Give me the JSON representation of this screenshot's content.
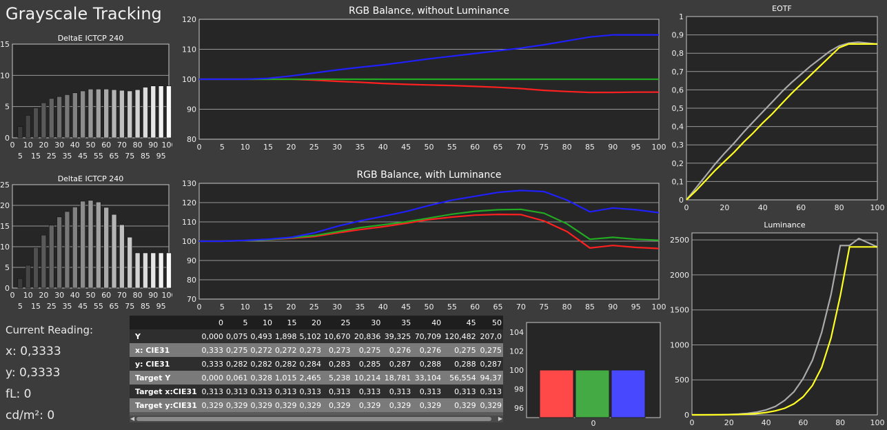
{
  "app": {
    "title": "Grayscale Tracking"
  },
  "current_reading": {
    "label": "Current Reading:",
    "x": "x: 0,3333",
    "y": "y: 0,3333",
    "fl": "fL: 0",
    "cdm2": "cd/m²: 0"
  },
  "colors": {
    "red": "#ff2020",
    "green": "#22aa22",
    "blue": "#2020ff",
    "yellow": "#ffff22",
    "gray": "#aaaaaa",
    "background": "#3c3c3c",
    "plot": "#262626"
  },
  "table": {
    "columns": [
      "",
      "0",
      "5",
      "10",
      "15",
      "20",
      "25",
      "30",
      "35",
      "40",
      "45",
      "50"
    ],
    "rows": [
      {
        "label": "Y",
        "values": [
          "0,000",
          "0,075",
          "0,493",
          "1,898",
          "5,102",
          "10,670",
          "20,836",
          "39,325",
          "70,709",
          "120,482",
          "207,0"
        ]
      },
      {
        "label": "x: CIE31",
        "values": [
          "0,333",
          "0,275",
          "0,272",
          "0,272",
          "0,273",
          "0,273",
          "0,275",
          "0,276",
          "0,276",
          "0,275",
          "0,275"
        ]
      },
      {
        "label": "y: CIE31",
        "values": [
          "0,333",
          "0,282",
          "0,282",
          "0,282",
          "0,284",
          "0,283",
          "0,285",
          "0,287",
          "0,288",
          "0,288",
          "0,287"
        ]
      },
      {
        "label": "Target Y",
        "values": [
          "0,000",
          "0,061",
          "0,328",
          "1,015",
          "2,465",
          "5,238",
          "10,214",
          "18,781",
          "33,104",
          "56,554",
          "94,37"
        ]
      },
      {
        "label": "Target x:CIE31",
        "values": [
          "0,313",
          "0,313",
          "0,313",
          "0,313",
          "0,313",
          "0,313",
          "0,313",
          "0,313",
          "0,313",
          "0,313",
          "0,313"
        ]
      },
      {
        "label": "Target y:CIE31",
        "values": [
          "0,329",
          "0,329",
          "0,329",
          "0,329",
          "0,329",
          "0,329",
          "0,329",
          "0,329",
          "0,329",
          "0,329",
          "0,329"
        ]
      }
    ]
  },
  "chart_data": [
    {
      "id": "deltae1",
      "type": "bar",
      "title": "DeltaE ICTCP 240",
      "ylim": [
        0,
        15
      ],
      "yticks": [
        0,
        5,
        10,
        15
      ],
      "x": [
        5,
        10,
        15,
        20,
        25,
        30,
        35,
        40,
        45,
        50,
        55,
        60,
        65,
        70,
        75,
        80,
        85,
        90,
        95,
        100
      ],
      "values": [
        1.8,
        3.6,
        4.8,
        5.6,
        6.3,
        6.6,
        6.9,
        7.2,
        7.5,
        7.8,
        7.8,
        7.8,
        7.7,
        7.6,
        7.5,
        7.7,
        8.1,
        8.3,
        8.3,
        8.3
      ],
      "xticks_top": [
        0,
        10,
        20,
        30,
        40,
        50,
        60,
        70,
        80,
        90,
        100
      ],
      "xticks_bottom": [
        5,
        15,
        25,
        35,
        45,
        55,
        65,
        75,
        85,
        95
      ]
    },
    {
      "id": "deltae2",
      "type": "bar",
      "title": "DeltaE ICTCP 240",
      "ylim": [
        0,
        25
      ],
      "yticks": [
        0,
        5,
        10,
        15,
        20,
        25
      ],
      "x": [
        5,
        10,
        15,
        20,
        25,
        30,
        35,
        40,
        45,
        50,
        55,
        60,
        65,
        70,
        75,
        80,
        85,
        90,
        95,
        100
      ],
      "values": [
        2.3,
        5.5,
        9.8,
        12.8,
        15.2,
        17.2,
        18.5,
        19.6,
        21.0,
        21.2,
        20.8,
        19.5,
        17.8,
        15.3,
        12.3,
        8.5,
        8.5,
        8.5,
        8.5,
        8.5
      ],
      "xticks_top": [
        0,
        10,
        20,
        30,
        40,
        50,
        60,
        70,
        80,
        90,
        100
      ],
      "xticks_bottom": [
        5,
        15,
        25,
        35,
        45,
        55,
        65,
        75,
        85,
        95
      ]
    },
    {
      "id": "rgb1",
      "type": "line",
      "title": "RGB Balance, without Luminance",
      "xlim": [
        0,
        100
      ],
      "ylim": [
        80,
        120
      ],
      "yticks": [
        80,
        90,
        100,
        110,
        120
      ],
      "xticks": [
        0,
        5,
        10,
        15,
        20,
        25,
        30,
        35,
        40,
        45,
        50,
        55,
        60,
        65,
        70,
        75,
        80,
        85,
        90,
        95,
        100
      ],
      "x": [
        0,
        5,
        10,
        15,
        20,
        25,
        30,
        35,
        40,
        45,
        50,
        55,
        60,
        65,
        70,
        75,
        80,
        85,
        90,
        95,
        100
      ],
      "series": [
        {
          "color": "red",
          "values": [
            100,
            100,
            100,
            100,
            100,
            99.7,
            99.3,
            99.0,
            98.6,
            98.3,
            98.1,
            97.9,
            97.6,
            97.3,
            96.9,
            96.3,
            95.9,
            95.6,
            95.6,
            95.7,
            95.7
          ]
        },
        {
          "color": "green",
          "values": [
            100,
            100,
            100,
            100,
            100,
            100,
            100,
            100,
            100,
            100,
            100,
            100,
            100,
            100,
            100,
            100,
            100,
            100,
            100,
            100,
            100
          ]
        },
        {
          "color": "blue",
          "values": [
            100,
            100,
            100,
            100.3,
            101.1,
            102.1,
            103.1,
            104,
            104.8,
            105.8,
            106.8,
            107.7,
            108.6,
            109.5,
            110.4,
            111.5,
            112.8,
            114.1,
            114.8,
            114.8,
            114.8
          ]
        }
      ]
    },
    {
      "id": "rgb2",
      "type": "line",
      "title": "RGB Balance, with Luminance",
      "xlim": [
        0,
        100
      ],
      "ylim": [
        70,
        130
      ],
      "yticks": [
        70,
        80,
        90,
        100,
        110,
        120,
        130
      ],
      "xticks": [
        0,
        5,
        10,
        15,
        20,
        25,
        30,
        35,
        40,
        45,
        50,
        55,
        60,
        65,
        70,
        75,
        80,
        85,
        90,
        95,
        100
      ],
      "x": [
        0,
        5,
        10,
        15,
        20,
        25,
        30,
        35,
        40,
        45,
        50,
        55,
        60,
        65,
        70,
        75,
        80,
        85,
        90,
        95,
        100
      ],
      "series": [
        {
          "color": "red",
          "values": [
            100,
            100,
            100.3,
            100.8,
            101.5,
            102.4,
            104.3,
            106,
            107.5,
            109.3,
            111.2,
            112.5,
            113.5,
            113.9,
            113.8,
            110.5,
            105.0,
            96.5,
            97.8,
            96.8,
            96.2
          ]
        },
        {
          "color": "green",
          "values": [
            100,
            100,
            100.3,
            100.8,
            101.8,
            102.9,
            104.9,
            107,
            108.5,
            110,
            112,
            114,
            115.5,
            116.3,
            116.5,
            114.5,
            109,
            101,
            102,
            101,
            100.5
          ]
        },
        {
          "color": "blue",
          "values": [
            100,
            100,
            100.4,
            101,
            102,
            104.3,
            107.7,
            110.5,
            112.9,
            115.4,
            118.5,
            121.3,
            123.3,
            125.3,
            126.3,
            125.7,
            121.3,
            115.2,
            117.2,
            116.3,
            114.8
          ]
        }
      ]
    },
    {
      "id": "eotf",
      "type": "line",
      "title": "EOTF",
      "xlim": [
        0,
        100
      ],
      "ylim": [
        0,
        1
      ],
      "yticks": [
        "0",
        "0,1",
        "0,2",
        "0,3",
        "0,4",
        "0,5",
        "0,6",
        "0,7",
        "0,8",
        "0,9",
        "1"
      ],
      "xticks": [
        0,
        20,
        40,
        60,
        80,
        100
      ],
      "x": [
        0,
        5,
        10,
        15,
        20,
        25,
        30,
        35,
        40,
        45,
        50,
        55,
        60,
        65,
        70,
        75,
        80,
        85,
        90,
        95,
        100
      ],
      "series": [
        {
          "color": "gray",
          "values": [
            0,
            0.065,
            0.13,
            0.195,
            0.255,
            0.31,
            0.37,
            0.425,
            0.48,
            0.535,
            0.59,
            0.64,
            0.685,
            0.73,
            0.77,
            0.81,
            0.84,
            0.855,
            0.86,
            0.855,
            0.85
          ]
        },
        {
          "color": "yellow",
          "values": [
            0,
            0.05,
            0.105,
            0.16,
            0.21,
            0.26,
            0.315,
            0.365,
            0.42,
            0.47,
            0.525,
            0.58,
            0.63,
            0.68,
            0.73,
            0.78,
            0.83,
            0.85,
            0.85,
            0.85,
            0.85
          ]
        }
      ]
    },
    {
      "id": "lum",
      "type": "line",
      "title": "Luminance",
      "xlim": [
        0,
        100
      ],
      "ylim": [
        0,
        2600
      ],
      "yticks": [
        0,
        500,
        1000,
        1500,
        2000,
        2500
      ],
      "xticks": [
        0,
        20,
        40,
        60,
        80,
        100
      ],
      "x": [
        0,
        5,
        10,
        15,
        20,
        25,
        30,
        35,
        40,
        45,
        50,
        55,
        60,
        65,
        70,
        75,
        80,
        85,
        90,
        95,
        100
      ],
      "series": [
        {
          "color": "gray",
          "values": [
            0,
            0.1,
            0.5,
            2,
            5,
            11,
            21,
            39,
            71,
            120,
            207,
            330,
            520,
            780,
            1180,
            1720,
            2420,
            2420,
            2520,
            2460,
            2400
          ]
        },
        {
          "color": "yellow",
          "values": [
            0,
            0.1,
            0.3,
            1,
            2.5,
            5,
            10,
            19,
            33,
            57,
            94,
            158,
            258,
            420,
            680,
            1100,
            1700,
            2400,
            2400,
            2400,
            2400
          ]
        }
      ]
    },
    {
      "id": "rgbbar",
      "type": "bar",
      "ylim": [
        95,
        105
      ],
      "yticks": [
        96,
        98,
        100,
        102,
        104
      ],
      "categories": [
        "0"
      ],
      "series": [
        {
          "color": "red",
          "values": [
            100
          ]
        },
        {
          "color": "green",
          "values": [
            100
          ]
        },
        {
          "color": "blue",
          "values": [
            100
          ]
        }
      ]
    }
  ]
}
